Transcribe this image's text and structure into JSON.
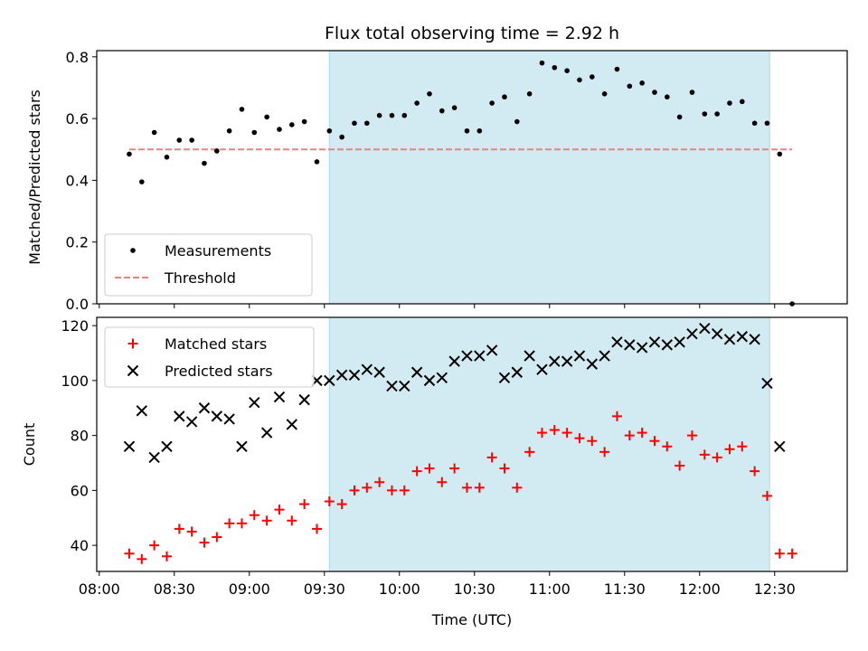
{
  "chart_data": [
    {
      "type": "scatter",
      "title": "Flux total observing time = 2.92 h",
      "ylabel": "Matched/Predicted stars",
      "ylim": [
        0,
        0.82
      ],
      "yticks": [
        "0.0",
        "0.2",
        "0.4",
        "0.6",
        "0.8"
      ],
      "x_range": [
        "07:59",
        "12:59"
      ],
      "shaded_interval": [
        "09:32",
        "12:28"
      ],
      "shade_color": "#add8e6",
      "legend_position": "lower-left",
      "series": [
        {
          "name": "Measurements",
          "marker": "dot",
          "color": "#000000",
          "points": [
            [
              "08:12",
              0.485
            ],
            [
              "08:17",
              0.395
            ],
            [
              "08:22",
              0.555
            ],
            [
              "08:27",
              0.475
            ],
            [
              "08:32",
              0.53
            ],
            [
              "08:37",
              0.53
            ],
            [
              "08:42",
              0.455
            ],
            [
              "08:47",
              0.495
            ],
            [
              "08:52",
              0.56
            ],
            [
              "08:57",
              0.63
            ],
            [
              "09:02",
              0.555
            ],
            [
              "09:07",
              0.605
            ],
            [
              "09:12",
              0.565
            ],
            [
              "09:17",
              0.58
            ],
            [
              "09:22",
              0.59
            ],
            [
              "09:27",
              0.46
            ],
            [
              "09:32",
              0.56
            ],
            [
              "09:37",
              0.54
            ],
            [
              "09:42",
              0.585
            ],
            [
              "09:47",
              0.585
            ],
            [
              "09:52",
              0.61
            ],
            [
              "09:57",
              0.61
            ],
            [
              "10:02",
              0.61
            ],
            [
              "10:07",
              0.65
            ],
            [
              "10:12",
              0.68
            ],
            [
              "10:17",
              0.625
            ],
            [
              "10:22",
              0.635
            ],
            [
              "10:27",
              0.56
            ],
            [
              "10:32",
              0.56
            ],
            [
              "10:37",
              0.65
            ],
            [
              "10:42",
              0.67
            ],
            [
              "10:47",
              0.59
            ],
            [
              "10:52",
              0.68
            ],
            [
              "10:57",
              0.78
            ],
            [
              "11:02",
              0.765
            ],
            [
              "11:07",
              0.755
            ],
            [
              "11:12",
              0.725
            ],
            [
              "11:17",
              0.735
            ],
            [
              "11:22",
              0.68
            ],
            [
              "11:27",
              0.76
            ],
            [
              "11:32",
              0.705
            ],
            [
              "11:37",
              0.715
            ],
            [
              "11:42",
              0.685
            ],
            [
              "11:47",
              0.67
            ],
            [
              "11:52",
              0.605
            ],
            [
              "11:57",
              0.685
            ],
            [
              "12:02",
              0.615
            ],
            [
              "12:07",
              0.615
            ],
            [
              "12:12",
              0.65
            ],
            [
              "12:17",
              0.655
            ],
            [
              "12:22",
              0.585
            ],
            [
              "12:27",
              0.585
            ],
            [
              "12:32",
              0.485
            ],
            [
              "12:37",
              0.0
            ]
          ]
        },
        {
          "name": "Threshold",
          "marker": "dashed-line",
          "color": "#f08080",
          "points": [
            [
              "08:12",
              0.5
            ],
            [
              "12:37",
              0.5
            ]
          ]
        }
      ]
    },
    {
      "type": "scatter",
      "xlabel": "Time (UTC)",
      "ylabel": "Count",
      "ylim": [
        30.5,
        123
      ],
      "yticks": [
        "40",
        "60",
        "80",
        "100",
        "120"
      ],
      "x_range": [
        "07:59",
        "12:59"
      ],
      "xticks": [
        "08:00",
        "08:30",
        "09:00",
        "09:30",
        "10:00",
        "10:30",
        "11:00",
        "11:30",
        "12:00",
        "12:30"
      ],
      "shaded_interval": [
        "09:32",
        "12:28"
      ],
      "shade_color": "#add8e6",
      "legend_position": "upper-left",
      "series": [
        {
          "name": "Matched stars",
          "marker": "plus",
          "color": "#ff0000",
          "points": [
            [
              "08:12",
              37
            ],
            [
              "08:17",
              35
            ],
            [
              "08:22",
              40
            ],
            [
              "08:27",
              36
            ],
            [
              "08:32",
              46
            ],
            [
              "08:37",
              45
            ],
            [
              "08:42",
              41
            ],
            [
              "08:47",
              43
            ],
            [
              "08:52",
              48
            ],
            [
              "08:57",
              48
            ],
            [
              "09:02",
              51
            ],
            [
              "09:07",
              49
            ],
            [
              "09:12",
              53
            ],
            [
              "09:17",
              49
            ],
            [
              "09:22",
              55
            ],
            [
              "09:27",
              46
            ],
            [
              "09:32",
              56
            ],
            [
              "09:37",
              55
            ],
            [
              "09:42",
              60
            ],
            [
              "09:47",
              61
            ],
            [
              "09:52",
              63
            ],
            [
              "09:57",
              60
            ],
            [
              "10:02",
              60
            ],
            [
              "10:07",
              67
            ],
            [
              "10:12",
              68
            ],
            [
              "10:17",
              63
            ],
            [
              "10:22",
              68
            ],
            [
              "10:27",
              61
            ],
            [
              "10:32",
              61
            ],
            [
              "10:37",
              72
            ],
            [
              "10:42",
              68
            ],
            [
              "10:47",
              61
            ],
            [
              "10:52",
              74
            ],
            [
              "10:57",
              81
            ],
            [
              "11:02",
              82
            ],
            [
              "11:07",
              81
            ],
            [
              "11:12",
              79
            ],
            [
              "11:17",
              78
            ],
            [
              "11:22",
              74
            ],
            [
              "11:27",
              87
            ],
            [
              "11:32",
              80
            ],
            [
              "11:37",
              81
            ],
            [
              "11:42",
              78
            ],
            [
              "11:47",
              76
            ],
            [
              "11:52",
              69
            ],
            [
              "11:57",
              80
            ],
            [
              "12:02",
              73
            ],
            [
              "12:07",
              72
            ],
            [
              "12:12",
              75
            ],
            [
              "12:17",
              76
            ],
            [
              "12:22",
              67
            ],
            [
              "12:27",
              58
            ],
            [
              "12:32",
              37
            ],
            [
              "12:37",
              37
            ]
          ]
        },
        {
          "name": "Predicted stars",
          "marker": "x",
          "color": "#000000",
          "points": [
            [
              "08:12",
              76
            ],
            [
              "08:17",
              89
            ],
            [
              "08:22",
              72
            ],
            [
              "08:27",
              76
            ],
            [
              "08:32",
              87
            ],
            [
              "08:37",
              85
            ],
            [
              "08:42",
              90
            ],
            [
              "08:47",
              87
            ],
            [
              "08:52",
              86
            ],
            [
              "08:57",
              76
            ],
            [
              "09:02",
              92
            ],
            [
              "09:07",
              81
            ],
            [
              "09:12",
              94
            ],
            [
              "09:17",
              84
            ],
            [
              "09:22",
              93
            ],
            [
              "09:27",
              100
            ],
            [
              "09:32",
              100
            ],
            [
              "09:37",
              102
            ],
            [
              "09:42",
              102
            ],
            [
              "09:47",
              104
            ],
            [
              "09:52",
              103
            ],
            [
              "09:57",
              98
            ],
            [
              "10:02",
              98
            ],
            [
              "10:07",
              103
            ],
            [
              "10:12",
              100
            ],
            [
              "10:17",
              101
            ],
            [
              "10:22",
              107
            ],
            [
              "10:27",
              109
            ],
            [
              "10:32",
              109
            ],
            [
              "10:37",
              111
            ],
            [
              "10:42",
              101
            ],
            [
              "10:47",
              103
            ],
            [
              "10:52",
              109
            ],
            [
              "10:57",
              104
            ],
            [
              "11:02",
              107
            ],
            [
              "11:07",
              107
            ],
            [
              "11:12",
              109
            ],
            [
              "11:17",
              106
            ],
            [
              "11:22",
              109
            ],
            [
              "11:27",
              114
            ],
            [
              "11:32",
              113
            ],
            [
              "11:37",
              112
            ],
            [
              "11:42",
              114
            ],
            [
              "11:47",
              113
            ],
            [
              "11:52",
              114
            ],
            [
              "11:57",
              117
            ],
            [
              "12:02",
              119
            ],
            [
              "12:07",
              117
            ],
            [
              "12:12",
              115
            ],
            [
              "12:17",
              116
            ],
            [
              "12:22",
              115
            ],
            [
              "12:27",
              99
            ],
            [
              "12:32",
              76
            ]
          ]
        }
      ]
    }
  ]
}
